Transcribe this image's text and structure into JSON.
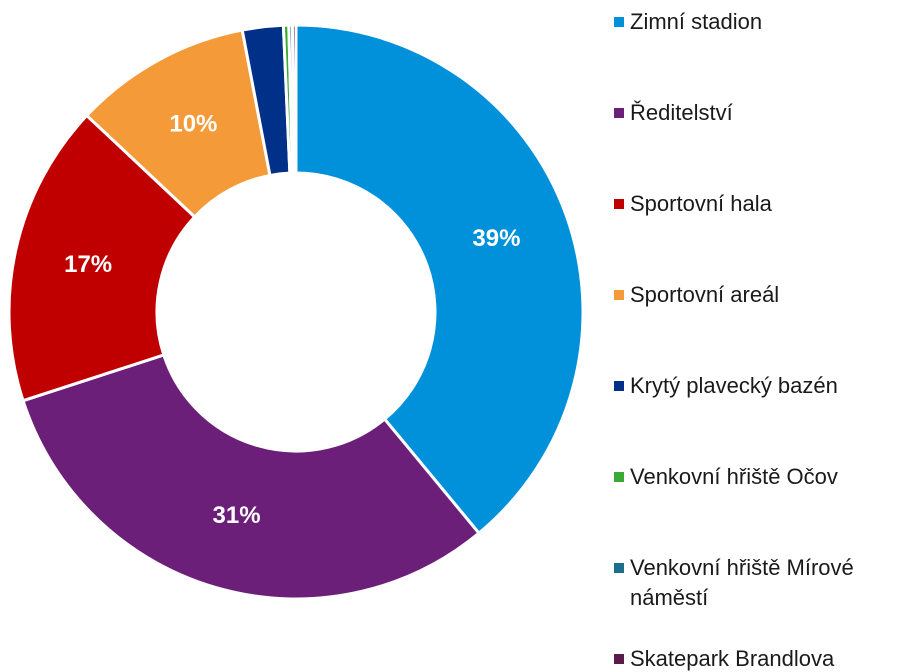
{
  "chart_data": {
    "type": "donut",
    "categories": [
      "Zimní stadion",
      "Ředitelství",
      "Sportovní hala",
      "Sportovní areál",
      "Krytý plavecký bazén",
      "Venkovní hřiště Očov",
      "Venkovní hřiště Mírové náměstí",
      "Skatepark Brandlova"
    ],
    "values": [
      39,
      31,
      17,
      10,
      2.3,
      0.3,
      0.2,
      0.2
    ],
    "value_labels": [
      "39%",
      "31%",
      "17%",
      "10%",
      null,
      null,
      null,
      null
    ],
    "colors": [
      "#0091da",
      "#6c1f78",
      "#c00000",
      "#f59a38",
      "#003087",
      "#3aaa35",
      "#1b6f8c",
      "#5a1a4a"
    ]
  }
}
